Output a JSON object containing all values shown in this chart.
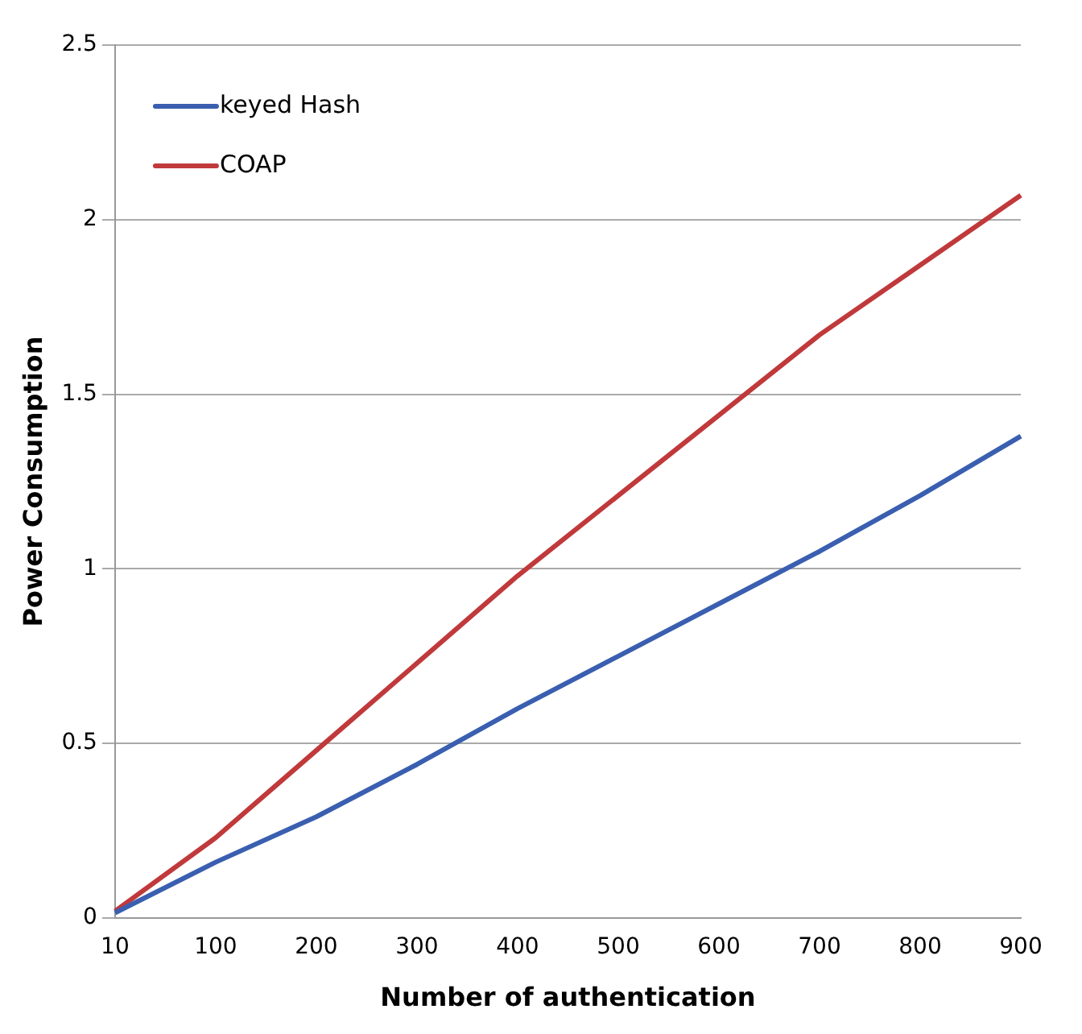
{
  "chart_data": {
    "type": "line",
    "xlabel": "Number of authentication",
    "ylabel": "Power Consumption",
    "categories": [
      "10",
      "100",
      "200",
      "300",
      "400",
      "500",
      "600",
      "700",
      "800",
      "900"
    ],
    "series": [
      {
        "name": "keyed Hash",
        "color": "#3a5fb0",
        "values": [
          0.015,
          0.16,
          0.29,
          0.44,
          0.6,
          0.75,
          0.9,
          1.05,
          1.21,
          1.38
        ]
      },
      {
        "name": "COAP",
        "color": "#c0393b",
        "values": [
          0.02,
          0.23,
          0.48,
          0.73,
          0.98,
          1.21,
          1.44,
          1.67,
          1.87,
          2.07
        ]
      }
    ],
    "ylim": [
      0,
      2.5
    ],
    "yticks": [
      0,
      0.5,
      1,
      1.5,
      2,
      2.5
    ],
    "grid": "y",
    "legend": "top left",
    "marker": "none",
    "line_style": "solid"
  }
}
